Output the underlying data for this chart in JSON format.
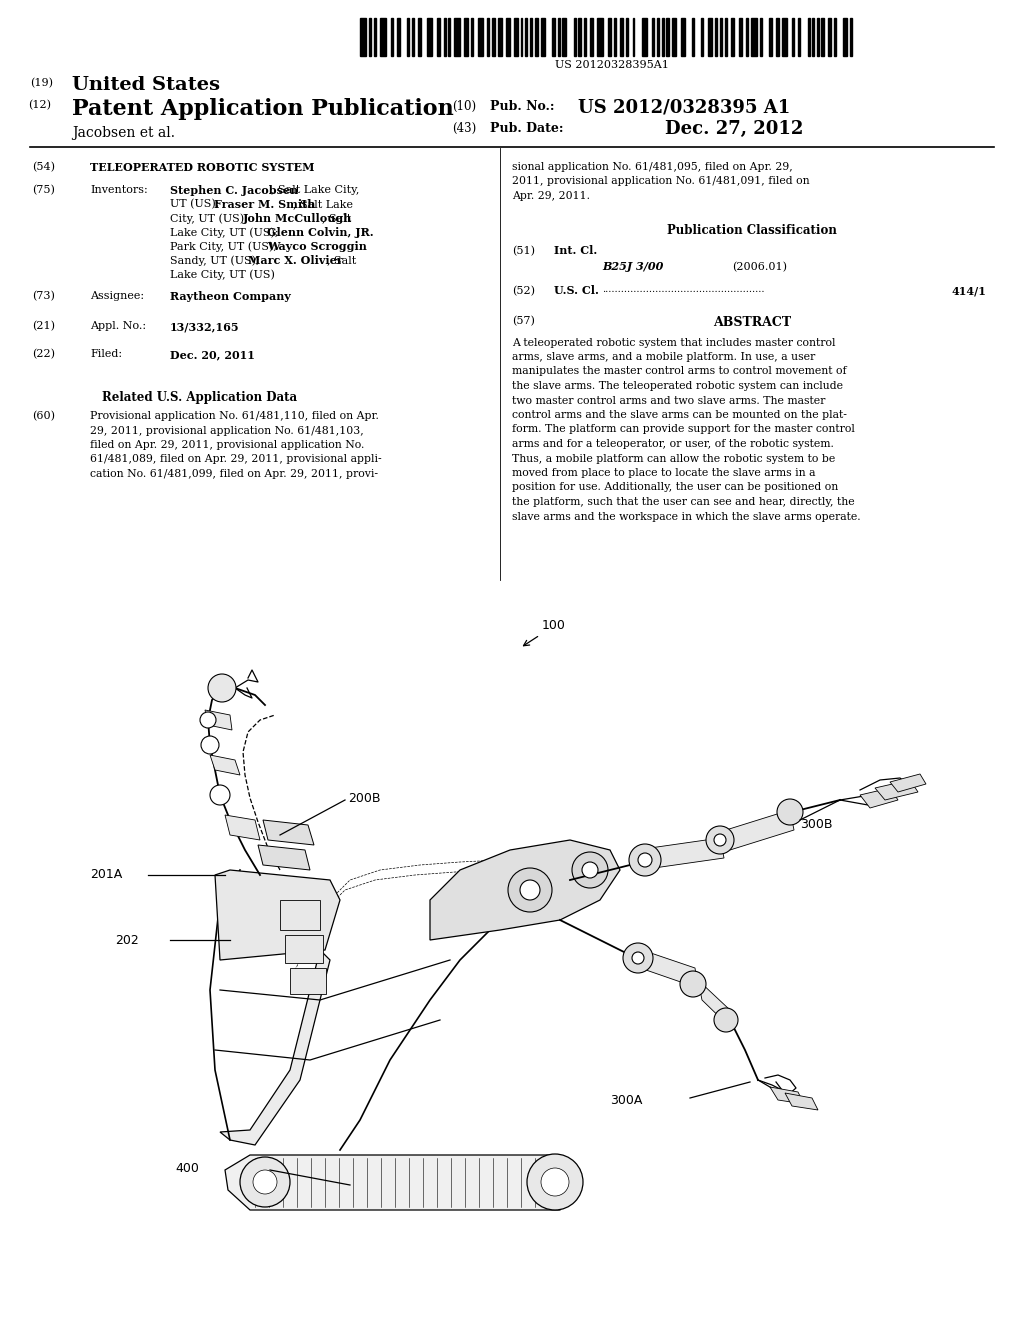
{
  "background_color": "#ffffff",
  "barcode_text": "US 20120328395A1",
  "pub_no": "US 2012/0328395 A1",
  "pub_date": "Dec. 27, 2012",
  "inventor_label": "Jacobsen et al.",
  "section54_title": "TELEOPERATED ROBOTIC SYSTEM",
  "section75_key": "Inventors:",
  "section73_value": "Raytheon Company",
  "section21_value": "13/332,165",
  "section22_value": "Dec. 20, 2011",
  "related_header": "Related U.S. Application Data",
  "pub_class_header": "Publication Classification",
  "section51_class": "B25J 3/00",
  "section51_year": "(2006.01)",
  "section52_value": "414/1",
  "abstract_lines": [
    "A teleoperated robotic system that includes master control",
    "arms, slave arms, and a mobile platform. In use, a user",
    "manipulates the master control arms to control movement of",
    "the slave arms. The teleoperated robotic system can include",
    "two master control arms and two slave arms. The master",
    "control arms and the slave arms can be mounted on the plat-",
    "form. The platform can provide support for the master control",
    "arms and for a teleoperator, or user, of the robotic system.",
    "Thus, a mobile platform can allow the robotic system to be",
    "moved from place to place to locate the slave arms in a",
    "position for use. Additionally, the user can be positioned on",
    "the platform, such that the user can see and hear, directly, the",
    "slave arms and the workspace in which the slave arms operate."
  ],
  "sec60_left_lines": [
    "Provisional application No. 61/481,110, filed on Apr.",
    "29, 2011, provisional application No. 61/481,103,",
    "filed on Apr. 29, 2011, provisional application No.",
    "61/481,089, filed on Apr. 29, 2011, provisional appli-",
    "cation No. 61/481,099, filed on Apr. 29, 2011, provi-"
  ],
  "sec60_right_lines": [
    "sional application No. 61/481,095, filed on Apr. 29,",
    "2011, provisional application No. 61/481,091, filed on",
    "Apr. 29, 2011."
  ],
  "inv_lines": [
    [
      [
        "bold",
        "Stephen C. Jacobsen"
      ],
      [
        "normal",
        ", Salt Lake City,"
      ]
    ],
    [
      [
        "normal",
        "UT (US); "
      ],
      [
        "bold",
        "Fraser M. Smith"
      ],
      [
        "normal",
        ", Salt Lake"
      ]
    ],
    [
      [
        "normal",
        "City, UT (US); "
      ],
      [
        "bold",
        "John McCullough"
      ],
      [
        "normal",
        ", Salt"
      ]
    ],
    [
      [
        "normal",
        "Lake City, UT (US); "
      ],
      [
        "bold",
        "Glenn Colvin, JR."
      ],
      [
        "normal",
        ","
      ]
    ],
    [
      [
        "normal",
        "Park City, UT (US); "
      ],
      [
        "bold",
        "Wayco Scroggin"
      ],
      [
        "normal",
        ","
      ]
    ],
    [
      [
        "normal",
        "Sandy, UT (US); "
      ],
      [
        "bold",
        "Marc X. Olivier"
      ],
      [
        "normal",
        ", Salt"
      ]
    ],
    [
      [
        "normal",
        "Lake City, UT (US)"
      ]
    ]
  ]
}
